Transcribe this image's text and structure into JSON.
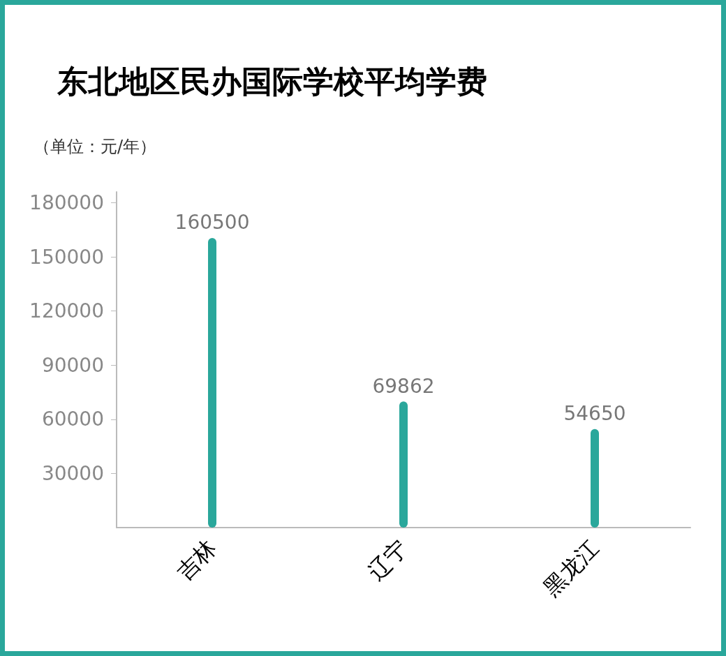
{
  "chart_data": {
    "type": "bar",
    "title": "东北地区民办国际学校平均学费",
    "subtitle": "（单位：元/年）",
    "categories": [
      "吉林",
      "辽宁",
      "黑龙江"
    ],
    "values": [
      160500,
      69862,
      54650
    ],
    "color": "#2aa79b",
    "ylim": [
      0,
      186000
    ],
    "yticks": [
      30000,
      60000,
      90000,
      120000,
      150000,
      180000
    ],
    "grid": false,
    "data_labels": true
  }
}
